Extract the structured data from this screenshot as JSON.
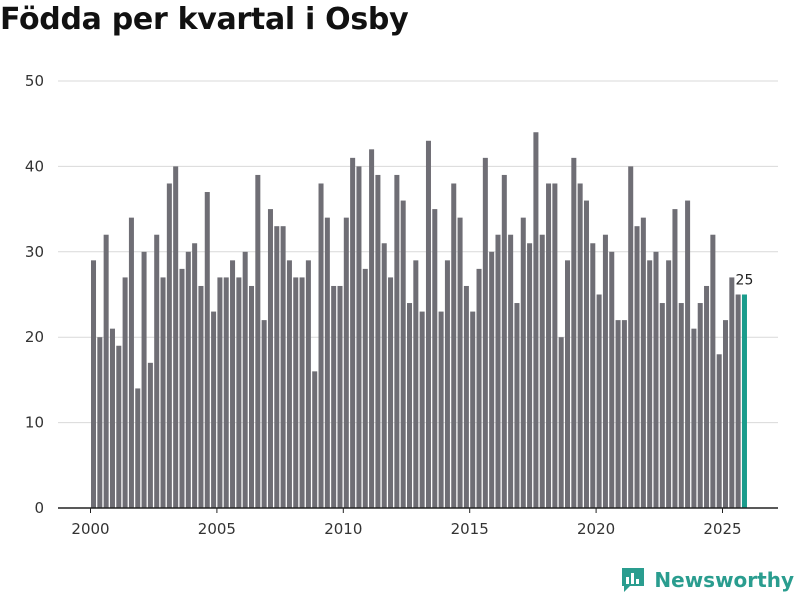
{
  "chart_data": {
    "type": "bar",
    "title": "Födda per kvartal i Osby",
    "xlabel": "",
    "ylabel": "",
    "ylim": [
      0,
      50
    ],
    "yticks": [
      0,
      10,
      20,
      30,
      40,
      50
    ],
    "xticks": [
      "2000",
      "2005",
      "2010",
      "2015",
      "2020",
      "2025"
    ],
    "start_year": 2000,
    "values": [
      29,
      20,
      32,
      21,
      19,
      27,
      34,
      14,
      30,
      17,
      32,
      27,
      38,
      40,
      28,
      30,
      31,
      26,
      37,
      23,
      27,
      27,
      29,
      27,
      30,
      26,
      39,
      22,
      35,
      33,
      33,
      29,
      27,
      27,
      29,
      16,
      38,
      34,
      26,
      26,
      34,
      41,
      40,
      28,
      42,
      39,
      31,
      27,
      39,
      36,
      24,
      29,
      23,
      43,
      35,
      23,
      29,
      38,
      34,
      26,
      23,
      28,
      41,
      30,
      32,
      39,
      32,
      24,
      34,
      31,
      44,
      32,
      38,
      38,
      20,
      29,
      41,
      38,
      36,
      31,
      25,
      32,
      30,
      22,
      22,
      40,
      33,
      34,
      29,
      30,
      24,
      29,
      35,
      24,
      36,
      21,
      24,
      26,
      32,
      18,
      22,
      27,
      25,
      25
    ],
    "bar_color": "#6f6e75",
    "highlight_color": "#1a9c8c",
    "highlight_label": "25",
    "grid": true
  },
  "branding": {
    "name": "Newsworthy",
    "color": "#2a9d8f"
  }
}
